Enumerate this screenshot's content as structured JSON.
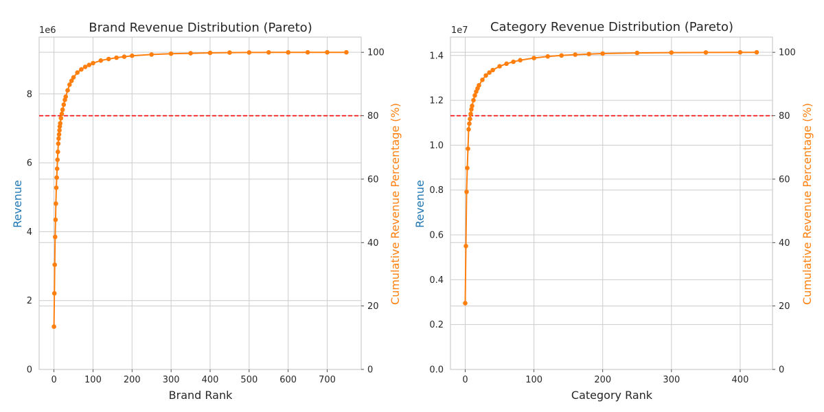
{
  "colors": {
    "revenue_axis": "#1f77b4",
    "cumulative": "#ff7f0e",
    "threshold": "#ff0000",
    "grid": "#cccccc",
    "text": "#262626"
  },
  "chart_data": [
    {
      "type": "line",
      "title": "Brand Revenue Distribution (Pareto)",
      "xlabel": "Brand Rank",
      "ylabel": "Revenue",
      "y2label": "Cumulative Revenue Percentage (%)",
      "y_offset_label": "1e6",
      "xlim": [
        -38,
        787
      ],
      "ylim": [
        0,
        9650000
      ],
      "y2lim": [
        0,
        104.8
      ],
      "xticks": [
        0,
        100,
        200,
        300,
        400,
        500,
        600,
        700
      ],
      "yticks": [
        0,
        2,
        4,
        6,
        8
      ],
      "y2ticks": [
        0,
        20,
        40,
        60,
        80,
        100
      ],
      "threshold_percent": 80,
      "grid": true,
      "series": [
        {
          "axis": "y2",
          "marker": "circle",
          "x": [
            0,
            1,
            2,
            3,
            4,
            5,
            6,
            7,
            8,
            9,
            10,
            11,
            12,
            13,
            14,
            15,
            16,
            18,
            20,
            22,
            25,
            28,
            30,
            35,
            40,
            45,
            50,
            60,
            70,
            80,
            90,
            100,
            120,
            140,
            160,
            180,
            200,
            250,
            300,
            350,
            400,
            450,
            500,
            550,
            600,
            650,
            700,
            749
          ],
          "y": [
            13.5,
            24.0,
            33.0,
            41.8,
            47.2,
            52.3,
            57.3,
            60.5,
            63.3,
            66.1,
            68.6,
            71.2,
            72.8,
            74.1,
            75.4,
            76.6,
            77.6,
            79.2,
            80.6,
            81.9,
            83.5,
            85.0,
            86.0,
            88.0,
            89.8,
            91.0,
            92.1,
            93.6,
            94.6,
            95.4,
            96.0,
            96.6,
            97.4,
            97.9,
            98.3,
            98.6,
            98.9,
            99.3,
            99.55,
            99.7,
            99.82,
            99.9,
            99.94,
            99.97,
            99.98,
            99.99,
            100.0,
            100.0
          ]
        }
      ]
    },
    {
      "type": "line",
      "title": "Category Revenue Distribution (Pareto)",
      "xlabel": "Category Rank",
      "ylabel": "Revenue",
      "y2label": "Cumulative Revenue Percentage (%)",
      "y_offset_label": "1e7",
      "xlim": [
        -21.5,
        447
      ],
      "ylim": [
        0,
        14820000
      ],
      "y2lim": [
        0,
        104.8
      ],
      "xticks": [
        0,
        100,
        200,
        300,
        400
      ],
      "yticks": [
        0.0,
        0.2,
        0.4,
        0.6,
        0.8,
        1.0,
        1.2,
        1.4
      ],
      "y2ticks": [
        0,
        20,
        40,
        60,
        80,
        100
      ],
      "threshold_percent": 80,
      "grid": true,
      "series": [
        {
          "axis": "y2",
          "marker": "circle",
          "x": [
            0,
            1,
            2,
            3,
            4,
            5,
            6,
            7,
            8,
            9,
            10,
            12,
            14,
            16,
            18,
            20,
            25,
            30,
            35,
            40,
            50,
            60,
            70,
            80,
            100,
            120,
            140,
            160,
            180,
            200,
            250,
            300,
            350,
            400,
            424
          ],
          "y": [
            20.9,
            38.9,
            56.0,
            63.5,
            69.6,
            75.7,
            77.5,
            79.0,
            80.6,
            82.0,
            83.1,
            84.9,
            86.4,
            87.6,
            88.6,
            89.6,
            91.3,
            92.7,
            93.6,
            94.4,
            95.6,
            96.4,
            97.0,
            97.5,
            98.2,
            98.7,
            99.0,
            99.25,
            99.45,
            99.6,
            99.8,
            99.9,
            99.96,
            99.99,
            100.0
          ]
        }
      ]
    }
  ]
}
